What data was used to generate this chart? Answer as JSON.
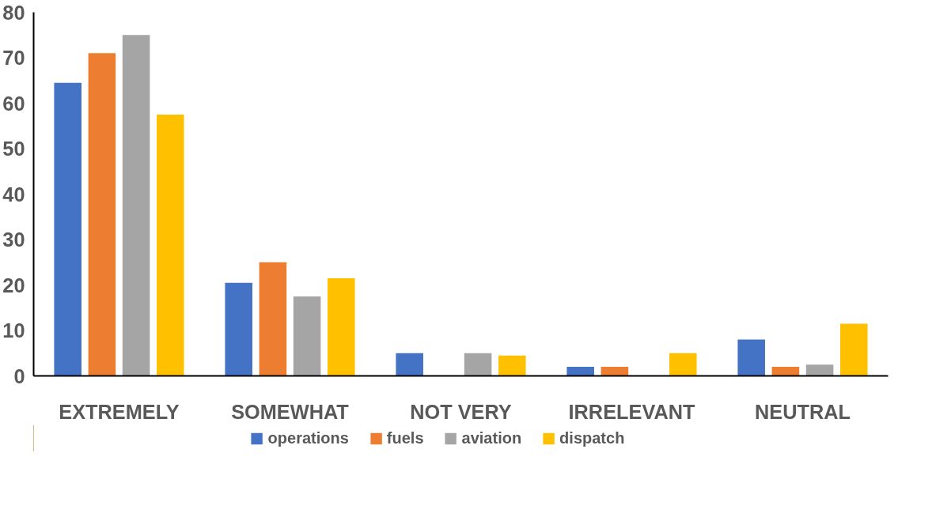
{
  "chart_data": {
    "type": "bar",
    "categories": [
      "EXTREMELY",
      "SOMEWHAT",
      "NOT VERY",
      "IRRELEVANT",
      "NEUTRAL"
    ],
    "series": [
      {
        "name": "operations",
        "color": "#4472c4",
        "values": [
          64.5,
          20.5,
          5,
          2,
          8
        ]
      },
      {
        "name": "fuels",
        "color": "#ed7d31",
        "values": [
          71,
          25,
          0,
          2,
          2
        ]
      },
      {
        "name": "aviation",
        "color": "#a5a5a5",
        "values": [
          75,
          17.5,
          5,
          0,
          2.5
        ]
      },
      {
        "name": "dispatch",
        "color": "#ffc000",
        "values": [
          57.5,
          21.5,
          4.5,
          5,
          11.5
        ]
      }
    ],
    "ylim": [
      0,
      80
    ],
    "yticks": [
      0,
      10,
      20,
      30,
      40,
      50,
      60,
      70,
      80
    ],
    "grid": false,
    "legend": "bottom"
  }
}
